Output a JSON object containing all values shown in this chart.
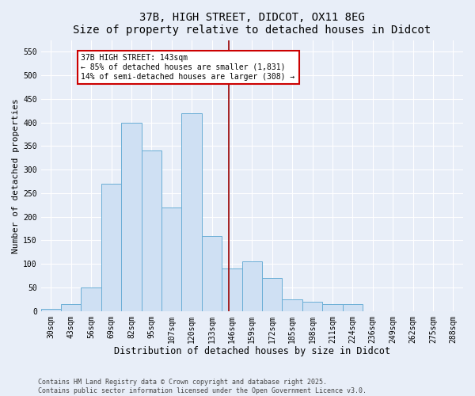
{
  "title1": "37B, HIGH STREET, DIDCOT, OX11 8EG",
  "title2": "Size of property relative to detached houses in Didcot",
  "xlabel": "Distribution of detached houses by size in Didcot",
  "ylabel": "Number of detached properties",
  "categories": [
    "30sqm",
    "43sqm",
    "56sqm",
    "69sqm",
    "82sqm",
    "95sqm",
    "107sqm",
    "120sqm",
    "133sqm",
    "146sqm",
    "159sqm",
    "172sqm",
    "185sqm",
    "198sqm",
    "211sqm",
    "224sqm",
    "236sqm",
    "249sqm",
    "262sqm",
    "275sqm",
    "288sqm"
  ],
  "values": [
    5,
    15,
    50,
    270,
    400,
    340,
    220,
    420,
    160,
    90,
    105,
    70,
    25,
    20,
    15,
    15,
    0,
    0,
    0,
    0,
    0
  ],
  "bar_color": "#cfe0f3",
  "bar_edge_color": "#6aaed6",
  "vline_x": 8.85,
  "vline_color": "#990000",
  "annotation_text": "37B HIGH STREET: 143sqm\n← 85% of detached houses are smaller (1,831)\n14% of semi-detached houses are larger (308) →",
  "annotation_box_color": "#ffffff",
  "annotation_box_edge": "#cc0000",
  "ylim": [
    0,
    575
  ],
  "yticks": [
    0,
    50,
    100,
    150,
    200,
    250,
    300,
    350,
    400,
    450,
    500,
    550
  ],
  "footer1": "Contains HM Land Registry data © Crown copyright and database right 2025.",
  "footer2": "Contains public sector information licensed under the Open Government Licence v3.0.",
  "bg_color": "#e8eef8",
  "grid_color": "#ffffff",
  "title1_fontsize": 10,
  "title2_fontsize": 9,
  "xlabel_fontsize": 8.5,
  "ylabel_fontsize": 8,
  "tick_fontsize": 7,
  "annot_fontsize": 7,
  "footer_fontsize": 6
}
